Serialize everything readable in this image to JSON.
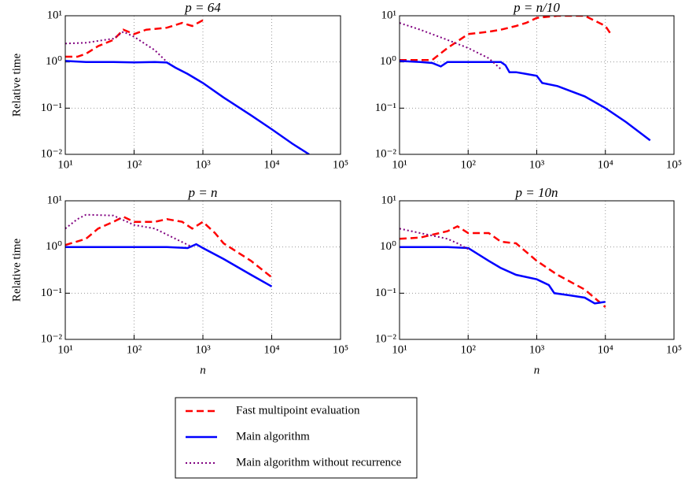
{
  "chart_data": [
    {
      "type": "line",
      "title": "p = 64",
      "ylabel": "Relative time",
      "xscale": "log",
      "yscale": "log",
      "grid": true,
      "xlim": [
        10,
        100000
      ],
      "ylim": [
        0.01,
        10
      ],
      "xticks": [
        {
          "value": 10,
          "label": "10¹"
        },
        {
          "value": 100,
          "label": "10²"
        },
        {
          "value": 1000,
          "label": "10³"
        },
        {
          "value": 10000,
          "label": "10⁴"
        },
        {
          "value": 100000,
          "label": "10⁵"
        }
      ],
      "yticks": [
        {
          "value": 0.01,
          "label": "10⁻²"
        },
        {
          "value": 0.1,
          "label": "10⁻¹"
        },
        {
          "value": 1,
          "label": "10⁰"
        },
        {
          "value": 10,
          "label": "10¹"
        }
      ],
      "series": [
        {
          "x": [
            10,
            15,
            20,
            30,
            50,
            70,
            100,
            150,
            200,
            300,
            500,
            700,
            1000
          ],
          "values": [
            1.3,
            1.3,
            1.5,
            2.2,
            3,
            5,
            4,
            5,
            5.2,
            5.5,
            7,
            6,
            8
          ]
        },
        {
          "x": [
            10,
            20,
            50,
            100,
            200,
            300,
            400,
            600,
            1000,
            2000,
            5000,
            10000,
            20000,
            35000
          ],
          "values": [
            1.05,
            1.0,
            1.0,
            0.98,
            1.0,
            0.97,
            0.75,
            0.55,
            0.35,
            0.17,
            0.07,
            0.035,
            0.017,
            0.01
          ]
        },
        {
          "x": [
            10,
            20,
            50,
            70,
            100,
            200,
            300
          ],
          "values": [
            2.5,
            2.6,
            3.2,
            4.5,
            3.5,
            1.8,
            1.0
          ]
        }
      ]
    },
    {
      "type": "line",
      "title": "p = n/10",
      "xscale": "log",
      "yscale": "log",
      "grid": true,
      "xlim": [
        10,
        100000
      ],
      "ylim": [
        0.01,
        10
      ],
      "xticks": [
        {
          "value": 10,
          "label": "10¹"
        },
        {
          "value": 100,
          "label": "10²"
        },
        {
          "value": 1000,
          "label": "10³"
        },
        {
          "value": 10000,
          "label": "10⁴"
        },
        {
          "value": 100000,
          "label": "10⁵"
        }
      ],
      "yticks": [
        {
          "value": 0.01,
          "label": "10⁻²"
        },
        {
          "value": 0.1,
          "label": "10⁻¹"
        },
        {
          "value": 1,
          "label": "10⁰"
        },
        {
          "value": 10,
          "label": "10¹"
        }
      ],
      "series": [
        {
          "x": [
            10,
            30,
            50,
            70,
            100,
            200,
            300,
            500,
            700,
            1000,
            2000,
            5000,
            10000,
            12000
          ],
          "values": [
            1.1,
            1.1,
            2,
            2.8,
            4,
            4.5,
            5,
            6,
            7,
            9,
            10,
            10,
            6,
            4
          ]
        },
        {
          "x": [
            10,
            20,
            30,
            40,
            50,
            100,
            200,
            300,
            350,
            400,
            500,
            700,
            1000,
            1200,
            2000,
            5000,
            10000,
            20000,
            45000
          ],
          "values": [
            1.05,
            1.0,
            0.95,
            0.8,
            1.0,
            1.0,
            1.0,
            1.0,
            0.85,
            0.6,
            0.6,
            0.55,
            0.5,
            0.35,
            0.3,
            0.18,
            0.1,
            0.05,
            0.02
          ]
        },
        {
          "x": [
            10,
            20,
            50,
            100,
            200,
            300
          ],
          "values": [
            7,
            5,
            3,
            2,
            1.2,
            0.7
          ]
        }
      ]
    },
    {
      "type": "line",
      "title": "p = n",
      "ylabel": "Relative time",
      "xlabel": "n",
      "xscale": "log",
      "yscale": "log",
      "grid": true,
      "xlim": [
        10,
        100000
      ],
      "ylim": [
        0.01,
        10
      ],
      "xticks": [
        {
          "value": 10,
          "label": "10¹"
        },
        {
          "value": 100,
          "label": "10²"
        },
        {
          "value": 1000,
          "label": "10³"
        },
        {
          "value": 10000,
          "label": "10⁴"
        },
        {
          "value": 100000,
          "label": "10⁵"
        }
      ],
      "yticks": [
        {
          "value": 0.01,
          "label": "10⁻²"
        },
        {
          "value": 0.1,
          "label": "10⁻¹"
        },
        {
          "value": 1,
          "label": "10⁰"
        },
        {
          "value": 10,
          "label": "10¹"
        }
      ],
      "series": [
        {
          "x": [
            10,
            20,
            30,
            50,
            70,
            100,
            200,
            300,
            500,
            700,
            1000,
            1500,
            2000,
            5000,
            10000
          ],
          "values": [
            1.1,
            1.5,
            2.5,
            3.5,
            4.5,
            3.5,
            3.5,
            4,
            3.5,
            2.5,
            3.5,
            2,
            1.2,
            0.5,
            0.22
          ]
        },
        {
          "x": [
            10,
            100,
            300,
            600,
            800,
            1000,
            2000,
            5000,
            10000
          ],
          "values": [
            1.0,
            1.0,
            1.0,
            0.95,
            1.15,
            0.95,
            0.55,
            0.25,
            0.14
          ]
        },
        {
          "x": [
            10,
            15,
            20,
            50,
            100,
            200,
            400,
            700
          ],
          "values": [
            2.5,
            4,
            5,
            4.8,
            3,
            2.5,
            1.5,
            1.0
          ]
        }
      ]
    },
    {
      "type": "line",
      "title": "p = 10n",
      "xlabel": "n",
      "xscale": "log",
      "yscale": "log",
      "grid": true,
      "xlim": [
        10,
        100000
      ],
      "ylim": [
        0.01,
        10
      ],
      "xticks": [
        {
          "value": 10,
          "label": "10¹"
        },
        {
          "value": 100,
          "label": "10²"
        },
        {
          "value": 1000,
          "label": "10³"
        },
        {
          "value": 10000,
          "label": "10⁴"
        },
        {
          "value": 100000,
          "label": "10⁵"
        }
      ],
      "yticks": [
        {
          "value": 0.01,
          "label": "10⁻²"
        },
        {
          "value": 0.1,
          "label": "10⁻¹"
        },
        {
          "value": 1,
          "label": "10⁰"
        },
        {
          "value": 10,
          "label": "10¹"
        }
      ],
      "series": [
        {
          "x": [
            10,
            20,
            50,
            70,
            100,
            200,
            300,
            500,
            1000,
            2000,
            5000,
            10000
          ],
          "values": [
            1.5,
            1.6,
            2.2,
            2.8,
            2,
            2,
            1.3,
            1.2,
            0.5,
            0.25,
            0.12,
            0.05
          ]
        },
        {
          "x": [
            10,
            50,
            100,
            200,
            300,
            500,
            1000,
            1500,
            1800,
            3000,
            5000,
            7000,
            10000
          ],
          "values": [
            1.0,
            1.0,
            0.95,
            0.5,
            0.35,
            0.25,
            0.2,
            0.15,
            0.1,
            0.09,
            0.08,
            0.06,
            0.065
          ]
        },
        {
          "x": [
            10,
            20,
            50,
            70,
            100
          ],
          "values": [
            2.5,
            2,
            1.5,
            1.2,
            0.9
          ]
        }
      ]
    }
  ],
  "legend": [
    {
      "name": "Fast multipoint evaluation",
      "color": "#ff0000",
      "dash": "dashed"
    },
    {
      "name": "Main algorithm",
      "color": "#0000ff",
      "dash": "solid"
    },
    {
      "name": "Main algorithm without recurrence",
      "color": "#800080",
      "dash": "dotted"
    }
  ]
}
